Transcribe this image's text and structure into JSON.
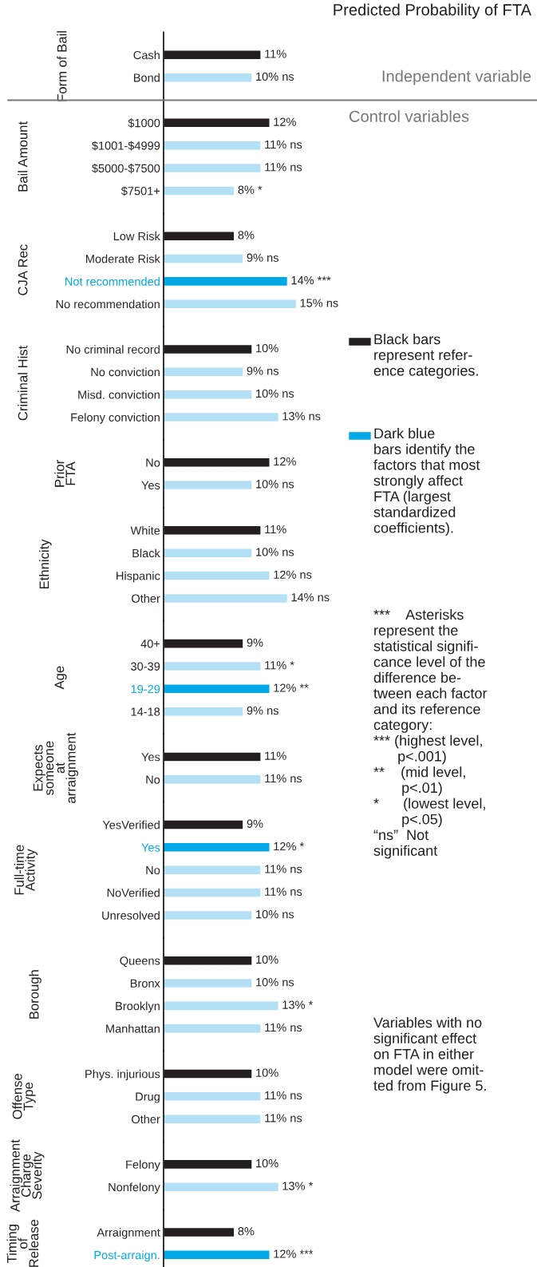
{
  "chart_data": [
    {
      "type": "bar",
      "orientation": "horizontal",
      "title": "Form of Bail",
      "categories": [
        "Cash",
        "Bond"
      ],
      "values": [
        11,
        10
      ],
      "colors": [
        "#231f20",
        "#b3e0f5"
      ],
      "value_labels": [
        "11%",
        "10% ns"
      ],
      "tick_labels": "y"
    },
    {
      "type": "bar",
      "orientation": "horizontal",
      "title": "Bail Amount",
      "categories": [
        "$1000",
        "$1001-$4999",
        "$5000-$7500",
        "$7501+"
      ],
      "values": [
        12,
        11,
        11,
        8
      ],
      "colors": [
        "#231f20",
        "#b3e0f5",
        "#b3e0f5",
        "#b3e0f5"
      ],
      "value_labels": [
        "12%",
        "11% ns",
        "11% ns",
        "8% *"
      ],
      "tick_labels": "y"
    },
    {
      "type": "bar",
      "orientation": "horizontal",
      "title": "CJA Rec",
      "categories": [
        "Low Risk",
        "Moderate Risk",
        "Not recommended",
        "No recommendation"
      ],
      "values": [
        8,
        9,
        14,
        15
      ],
      "colors": [
        "#231f20",
        "#b3e0f5",
        "#00a8e8",
        "#b3e0f5"
      ],
      "value_labels": [
        "8%",
        "9% ns",
        "14% ***",
        "15% ns"
      ],
      "tick_labels": "y"
    },
    {
      "type": "bar",
      "orientation": "horizontal",
      "title": "Criminal Hist",
      "categories": [
        "No criminal record",
        "No conviction",
        "Misd. conviction",
        "Felony conviction"
      ],
      "values": [
        10,
        9,
        10,
        13
      ],
      "colors": [
        "#231f20",
        "#b3e0f5",
        "#b3e0f5",
        "#b3e0f5"
      ],
      "value_labels": [
        "10%",
        "9% ns",
        "10% ns",
        "13% ns"
      ],
      "tick_labels": "y"
    },
    {
      "type": "bar",
      "orientation": "horizontal",
      "title": "Prior\nFTA",
      "categories": [
        "No",
        "Yes"
      ],
      "values": [
        12,
        10
      ],
      "colors": [
        "#231f20",
        "#b3e0f5"
      ],
      "value_labels": [
        "12%",
        "10% ns"
      ],
      "tick_labels": "y"
    },
    {
      "type": "bar",
      "orientation": "horizontal",
      "title": "Ethnicity",
      "categories": [
        "White",
        "Black",
        "Hispanic",
        "Other"
      ],
      "values": [
        11,
        10,
        12,
        14
      ],
      "colors": [
        "#231f20",
        "#b3e0f5",
        "#b3e0f5",
        "#b3e0f5"
      ],
      "value_labels": [
        "11%",
        "10% ns",
        "12% ns",
        "14% ns"
      ],
      "tick_labels": "y"
    },
    {
      "type": "bar",
      "orientation": "horizontal",
      "title": "Age",
      "categories": [
        "40+",
        "30-39",
        "19-29",
        "14-18"
      ],
      "values": [
        9,
        11,
        12,
        9
      ],
      "colors": [
        "#231f20",
        "#b3e0f5",
        "#00a8e8",
        "#b3e0f5"
      ],
      "value_labels": [
        "9%",
        "11% *",
        "12% **",
        "9% ns"
      ],
      "tick_labels": "y"
    },
    {
      "type": "bar",
      "orientation": "horizontal",
      "title": "Expects\nsomeone\nat\narraignment",
      "categories": [
        "Yes",
        "No"
      ],
      "values": [
        11,
        11
      ],
      "colors": [
        "#231f20",
        "#b3e0f5"
      ],
      "value_labels": [
        "11%",
        "11% ns"
      ],
      "tick_labels": "y"
    },
    {
      "type": "bar",
      "orientation": "horizontal",
      "title": "Full-time\nActivity",
      "categories": [
        "YesVerified",
        "Yes",
        "No",
        "NoVerified",
        "Unresolved"
      ],
      "values": [
        9,
        12,
        11,
        11,
        10
      ],
      "colors": [
        "#231f20",
        "#00a8e8",
        "#b3e0f5",
        "#b3e0f5",
        "#b3e0f5"
      ],
      "value_labels": [
        "9%",
        "12% *",
        "11% ns",
        "11% ns",
        "10% ns"
      ],
      "tick_labels": "y"
    },
    {
      "type": "bar",
      "orientation": "horizontal",
      "title": "Borough",
      "categories": [
        "Queens",
        "Bronx",
        "Brooklyn",
        "Manhattan"
      ],
      "values": [
        10,
        10,
        13,
        11
      ],
      "colors": [
        "#231f20",
        "#b3e0f5",
        "#b3e0f5",
        "#b3e0f5"
      ],
      "value_labels": [
        "10%",
        "10% ns",
        "13% *",
        "11% ns"
      ],
      "tick_labels": "y"
    },
    {
      "type": "bar",
      "orientation": "horizontal",
      "title": "Offense\nType",
      "categories": [
        "Phys. injurious",
        "Drug",
        "Other"
      ],
      "values": [
        10,
        11,
        11
      ],
      "colors": [
        "#231f20",
        "#b3e0f5",
        "#b3e0f5"
      ],
      "value_labels": [
        "10%",
        "11% ns",
        "11% ns"
      ],
      "tick_labels": "y"
    },
    {
      "type": "bar",
      "orientation": "horizontal",
      "title": "Arraignment\nCharge\nSeverity",
      "categories": [
        "Felony",
        "Nonfelony"
      ],
      "values": [
        10,
        13
      ],
      "colors": [
        "#231f20",
        "#b3e0f5"
      ],
      "value_labels": [
        "10%",
        "13% *"
      ],
      "tick_labels": "y"
    },
    {
      "type": "bar",
      "orientation": "horizontal",
      "title": "Timing\nof\nRelease",
      "categories": [
        "Arraignment",
        "Post-arraign."
      ],
      "values": [
        8,
        12
      ],
      "colors": [
        "#231f20",
        "#00a8e8"
      ],
      "value_labels": [
        "8%",
        "12% ***"
      ],
      "tick_labels": "y"
    },
    {
      "type": "other",
      "title": "Predicted Probability of FTA",
      "colors": [
        "#231f20",
        "#00a8e8"
      ],
      "annotations": [
        "Independent variable",
        "Control variables",
        "Black bars\nrepresent refer-\nence categories.",
        "Dark blue\nbars identify the\nfactors that most\nstrongly affect\nFTA (largest\nstandardized\ncoefficients).",
        "***    Asterisks\nrepresent the\nstatistical signifi-\ncance level of the\ndifference be-\ntween each factor\nand its reference\ncategory:\n*** (highest level,\n      p<.001)\n**    (mid level,\n       p<.01)\n*      (lowest level,\n       p<.05)\n“ns”  Not\nsignificant",
        "Variables with no\nsignificant effect\non FTA in either\nmodel were omit-\nted from Figure 5."
      ]
    }
  ]
}
